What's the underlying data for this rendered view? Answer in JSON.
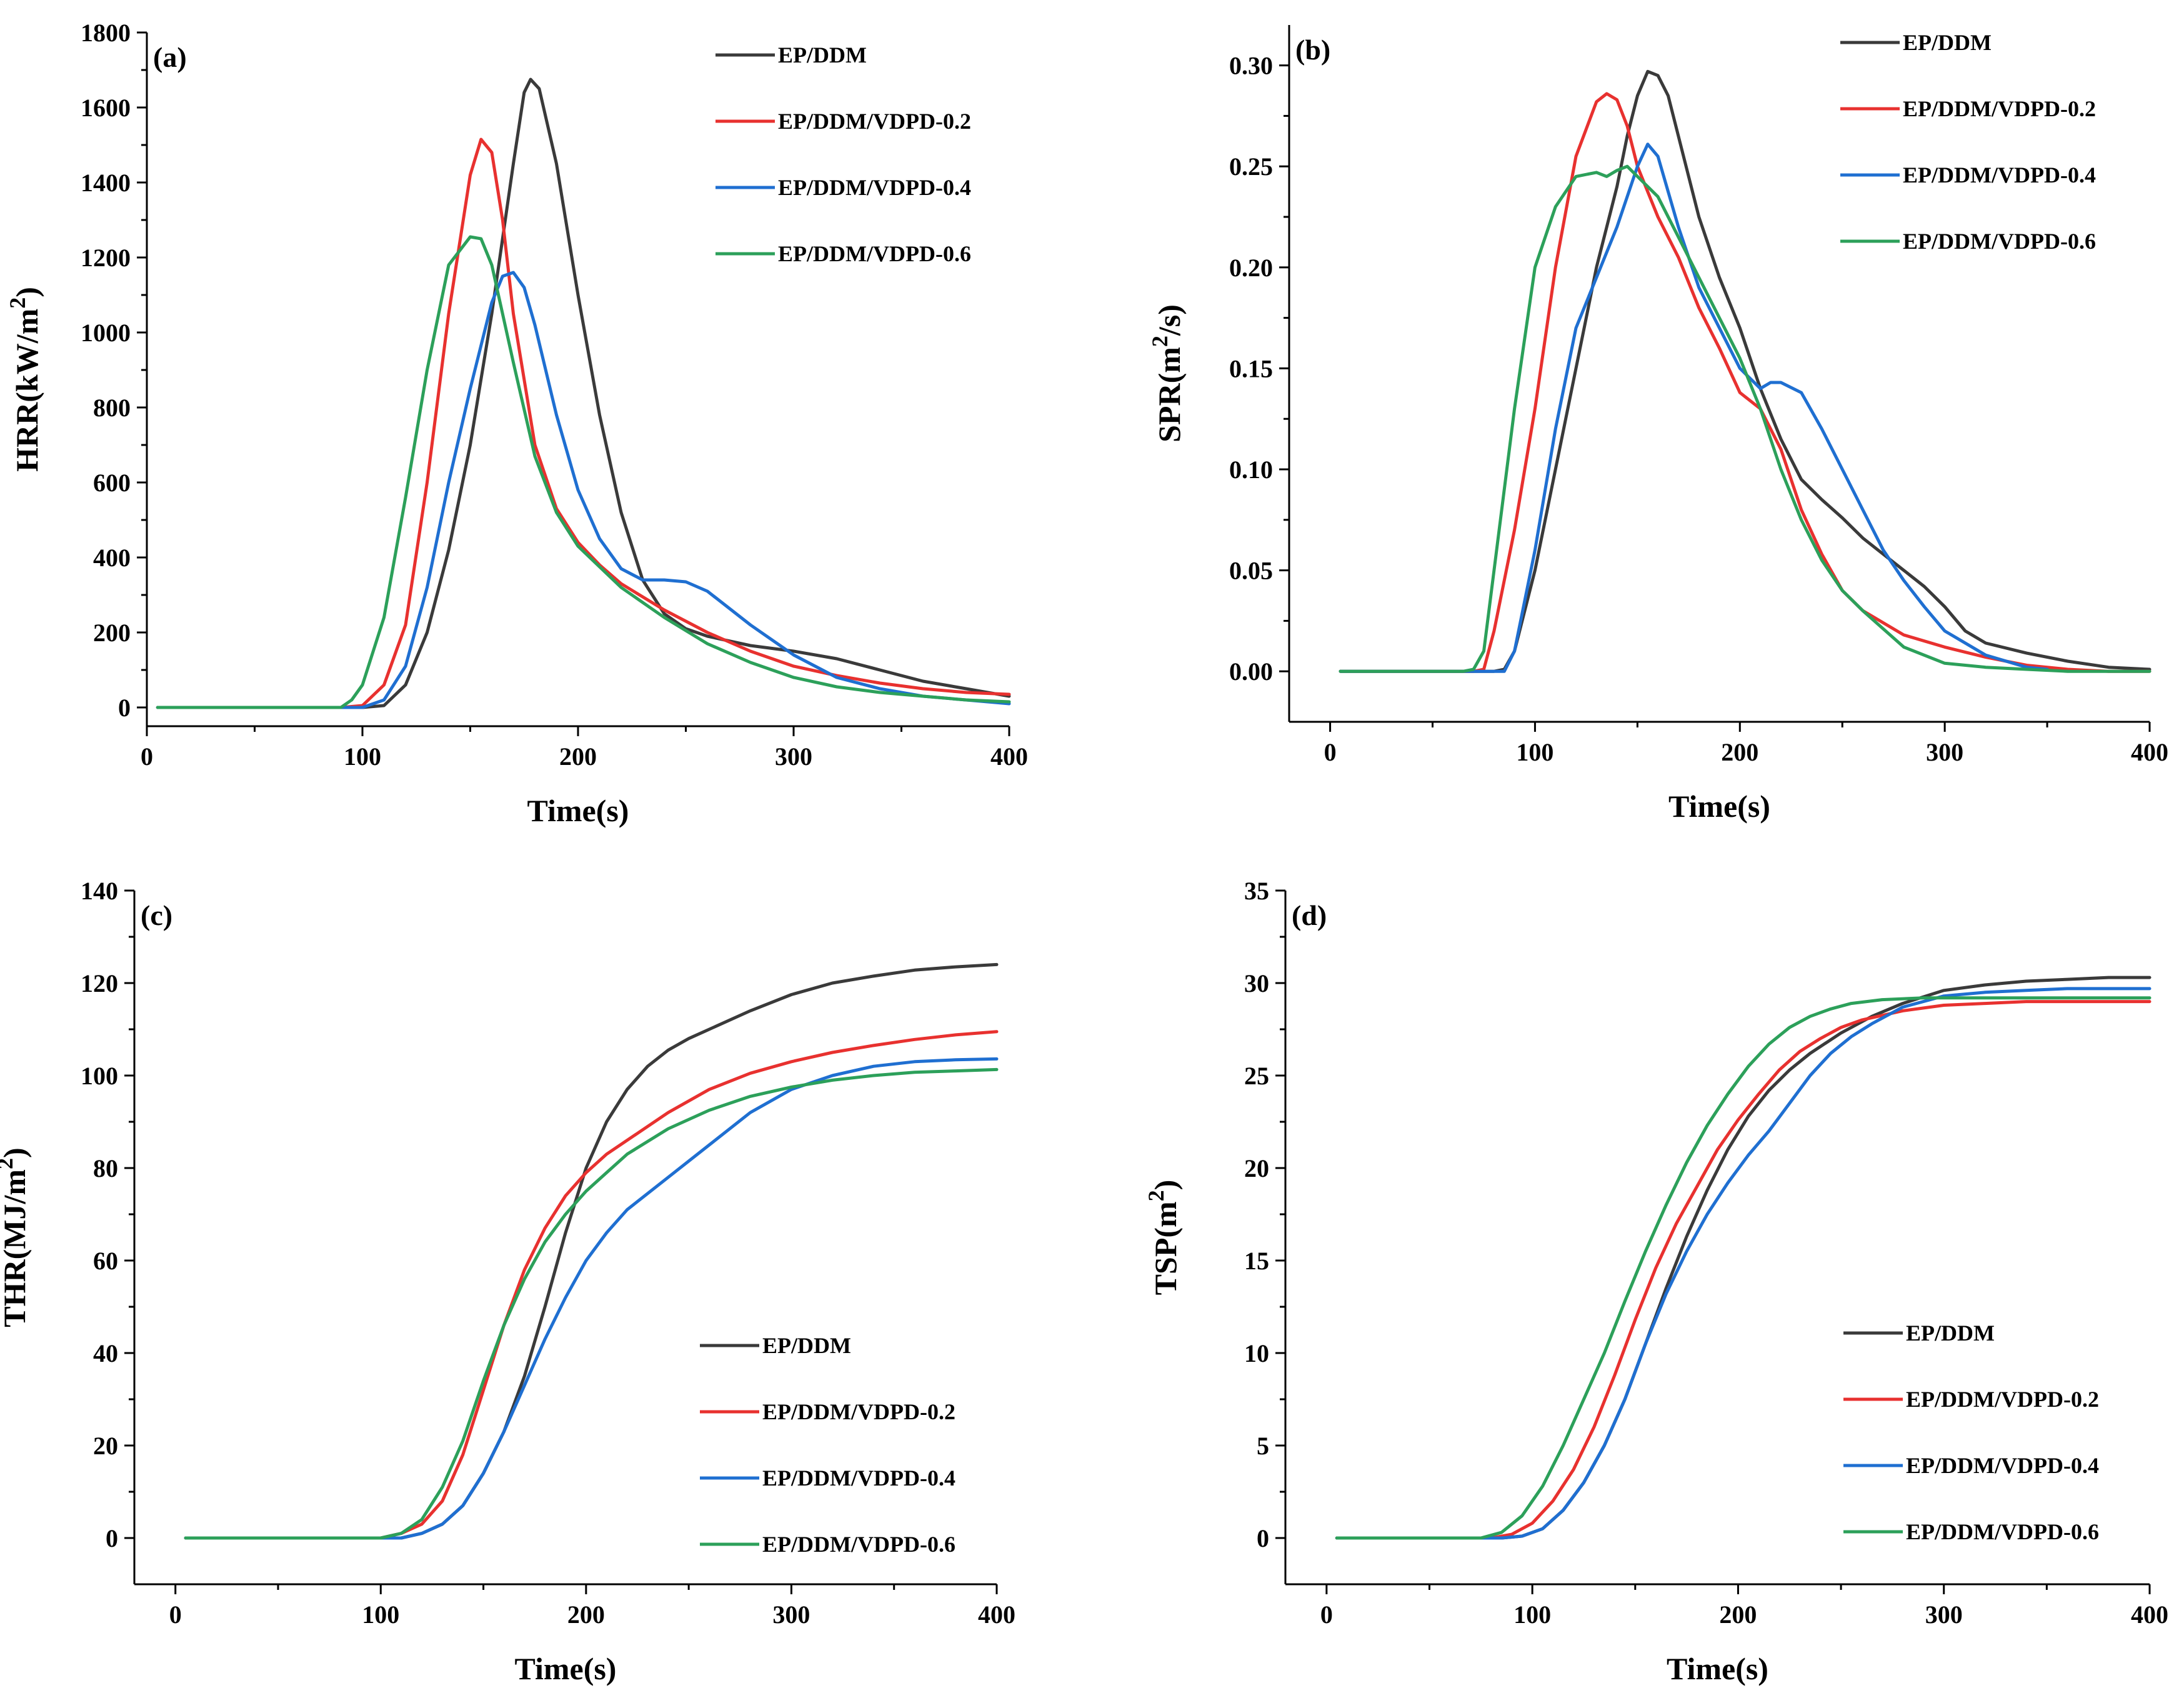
{
  "colors": {
    "EP/DDM": "#3a3a3a",
    "EP/DDM/VDPD-0.2": "#e8312f",
    "EP/DDM/VDPD-0.4": "#1f6fd1",
    "EP/DDM/VDPD-0.6": "#2ca05a"
  },
  "chart_data": [
    {
      "id": "a",
      "type": "line",
      "panel_label": "(a)",
      "title": "",
      "xlabel": "Time(s)",
      "ylabel": "HRR(kW/m²)",
      "xlim": [
        0,
        400
      ],
      "ylim": [
        -50,
        1800
      ],
      "xticks": [
        0,
        100,
        200,
        300,
        400
      ],
      "xtick_labels": [
        "0",
        "100",
        "200",
        "300",
        "400"
      ],
      "yticks": [
        0,
        200,
        400,
        600,
        800,
        1000,
        1200,
        1400,
        1600,
        1800
      ],
      "ytick_labels": [
        "0",
        "200",
        "400",
        "600",
        "800",
        "1000",
        "1200",
        "1400",
        "1600",
        "1800"
      ],
      "legend_position": "top-right",
      "series": [
        {
          "name": "EP/DDM",
          "x": [
            5,
            100,
            110,
            120,
            130,
            140,
            150,
            160,
            170,
            175,
            178,
            182,
            190,
            200,
            210,
            220,
            230,
            240,
            250,
            260,
            280,
            300,
            320,
            340,
            360,
            380,
            400
          ],
          "y": [
            0,
            0,
            5,
            60,
            200,
            420,
            700,
            1050,
            1450,
            1640,
            1675,
            1650,
            1450,
            1100,
            780,
            520,
            340,
            250,
            210,
            190,
            165,
            150,
            130,
            100,
            70,
            50,
            30
          ]
        },
        {
          "name": "EP/DDM/VDPD-0.2",
          "x": [
            5,
            90,
            100,
            110,
            120,
            130,
            140,
            150,
            155,
            160,
            165,
            170,
            180,
            190,
            200,
            210,
            220,
            240,
            260,
            280,
            300,
            320,
            340,
            360,
            380,
            400
          ],
          "y": [
            0,
            0,
            5,
            60,
            220,
            600,
            1050,
            1420,
            1515,
            1480,
            1300,
            1050,
            700,
            530,
            440,
            380,
            330,
            260,
            200,
            150,
            110,
            85,
            65,
            50,
            40,
            35
          ]
        },
        {
          "name": "EP/DDM/VDPD-0.4",
          "x": [
            5,
            100,
            110,
            120,
            130,
            140,
            150,
            160,
            165,
            170,
            175,
            180,
            190,
            200,
            210,
            220,
            230,
            240,
            250,
            260,
            280,
            300,
            320,
            340,
            360,
            380,
            400
          ],
          "y": [
            0,
            0,
            20,
            110,
            320,
            600,
            850,
            1080,
            1150,
            1160,
            1120,
            1020,
            780,
            580,
            450,
            370,
            340,
            340,
            335,
            310,
            220,
            140,
            80,
            50,
            30,
            20,
            10
          ]
        },
        {
          "name": "EP/DDM/VDPD-0.6",
          "x": [
            5,
            90,
            95,
            100,
            110,
            120,
            130,
            140,
            150,
            155,
            160,
            170,
            180,
            190,
            200,
            220,
            240,
            260,
            280,
            300,
            320,
            340,
            360,
            380,
            400
          ],
          "y": [
            0,
            0,
            20,
            60,
            240,
            560,
            900,
            1180,
            1255,
            1250,
            1180,
            920,
            670,
            520,
            430,
            320,
            240,
            170,
            120,
            80,
            55,
            40,
            30,
            20,
            15
          ]
        }
      ]
    },
    {
      "id": "b",
      "type": "line",
      "panel_label": "(b)",
      "title": "",
      "xlabel": "Time(s)",
      "ylabel": "SPR(m²/s)",
      "xlim": [
        -20,
        400
      ],
      "ylim": [
        -0.025,
        0.32
      ],
      "xticks": [
        0,
        100,
        200,
        300,
        400
      ],
      "xtick_labels": [
        "0",
        "100",
        "200",
        "300",
        "400"
      ],
      "yticks": [
        0,
        0.05,
        0.1,
        0.15,
        0.2,
        0.25,
        0.3
      ],
      "ytick_labels": [
        "0.00",
        "0.05",
        "0.10",
        "0.15",
        "0.20",
        "0.25",
        "0.30"
      ],
      "legend_position": "top-right",
      "series": [
        {
          "name": "EP/DDM",
          "x": [
            5,
            80,
            85,
            90,
            100,
            110,
            120,
            130,
            140,
            145,
            150,
            155,
            160,
            165,
            170,
            180,
            190,
            200,
            210,
            220,
            230,
            240,
            250,
            260,
            270,
            280,
            290,
            300,
            310,
            320,
            340,
            360,
            380,
            400
          ],
          "y": [
            0,
            0,
            0.001,
            0.01,
            0.05,
            0.1,
            0.15,
            0.2,
            0.24,
            0.265,
            0.285,
            0.297,
            0.295,
            0.285,
            0.265,
            0.225,
            0.195,
            0.17,
            0.14,
            0.115,
            0.095,
            0.085,
            0.076,
            0.066,
            0.058,
            0.05,
            0.042,
            0.032,
            0.02,
            0.014,
            0.009,
            0.005,
            0.002,
            0.001
          ]
        },
        {
          "name": "EP/DDM/VDPD-0.2",
          "x": [
            5,
            70,
            75,
            80,
            90,
            100,
            110,
            120,
            130,
            135,
            140,
            145,
            150,
            160,
            170,
            180,
            190,
            200,
            210,
            220,
            230,
            240,
            250,
            260,
            280,
            300,
            320,
            340,
            360,
            380,
            400
          ],
          "y": [
            0,
            0,
            0.001,
            0.02,
            0.07,
            0.13,
            0.2,
            0.255,
            0.282,
            0.286,
            0.283,
            0.27,
            0.25,
            0.225,
            0.205,
            0.18,
            0.16,
            0.138,
            0.13,
            0.11,
            0.08,
            0.058,
            0.04,
            0.03,
            0.018,
            0.012,
            0.007,
            0.003,
            0.001,
            0,
            0
          ]
        },
        {
          "name": "EP/DDM/VDPD-0.4",
          "x": [
            5,
            85,
            90,
            100,
            110,
            120,
            130,
            140,
            150,
            155,
            160,
            170,
            180,
            190,
            200,
            210,
            215,
            220,
            230,
            240,
            250,
            260,
            270,
            280,
            290,
            300,
            320,
            340,
            350
          ],
          "y": [
            0,
            0,
            0.01,
            0.06,
            0.12,
            0.17,
            0.195,
            0.22,
            0.25,
            0.261,
            0.255,
            0.22,
            0.19,
            0.17,
            0.15,
            0.14,
            0.143,
            0.143,
            0.138,
            0.12,
            0.1,
            0.08,
            0.06,
            0.045,
            0.032,
            0.02,
            0.008,
            0.002,
            0.001
          ]
        },
        {
          "name": "EP/DDM/VDPD-0.6",
          "x": [
            5,
            65,
            70,
            75,
            80,
            90,
            100,
            110,
            120,
            130,
            135,
            140,
            145,
            150,
            160,
            170,
            180,
            190,
            200,
            210,
            220,
            230,
            240,
            250,
            260,
            280,
            300,
            320,
            340,
            360,
            380,
            400
          ],
          "y": [
            0,
            0,
            0.001,
            0.01,
            0.05,
            0.13,
            0.2,
            0.23,
            0.245,
            0.247,
            0.245,
            0.248,
            0.25,
            0.245,
            0.235,
            0.215,
            0.195,
            0.175,
            0.155,
            0.13,
            0.1,
            0.075,
            0.055,
            0.04,
            0.03,
            0.012,
            0.004,
            0.002,
            0.001,
            0,
            0,
            0
          ]
        }
      ]
    },
    {
      "id": "c",
      "type": "line",
      "panel_label": "(c)",
      "title": "",
      "xlabel": "Time(s)",
      "ylabel": "THR(MJ/m²)",
      "xlim": [
        -20,
        400
      ],
      "ylim": [
        -10,
        140
      ],
      "xticks": [
        0,
        100,
        200,
        300,
        400
      ],
      "xtick_labels": [
        "0",
        "100",
        "200",
        "300",
        "400"
      ],
      "yticks": [
        0,
        20,
        40,
        60,
        80,
        100,
        120,
        140
      ],
      "ytick_labels": [
        "0",
        "20",
        "40",
        "60",
        "80",
        "100",
        "120",
        "140"
      ],
      "legend_position": "bottom-right",
      "series": [
        {
          "name": "EP/DDM",
          "x": [
            5,
            110,
            120,
            130,
            140,
            150,
            160,
            170,
            180,
            190,
            200,
            210,
            220,
            230,
            240,
            250,
            260,
            280,
            300,
            320,
            340,
            360,
            380,
            400
          ],
          "y": [
            0,
            0,
            1,
            3,
            7,
            14,
            23,
            35,
            50,
            66,
            80,
            90,
            97,
            102,
            105.5,
            108,
            110,
            114,
            117.5,
            120,
            121.5,
            122.8,
            123.5,
            124
          ]
        },
        {
          "name": "EP/DDM/VDPD-0.2",
          "x": [
            5,
            100,
            110,
            120,
            130,
            140,
            150,
            160,
            170,
            180,
            190,
            200,
            210,
            220,
            240,
            260,
            280,
            300,
            320,
            340,
            360,
            380,
            400
          ],
          "y": [
            0,
            0,
            1,
            3,
            8,
            18,
            32,
            46,
            58,
            67,
            74,
            79,
            83,
            86,
            92,
            97,
            100.5,
            103,
            105,
            106.5,
            107.8,
            108.8,
            109.5
          ]
        },
        {
          "name": "EP/DDM/VDPD-0.4",
          "x": [
            5,
            110,
            120,
            130,
            140,
            150,
            160,
            170,
            180,
            190,
            200,
            210,
            220,
            240,
            260,
            280,
            300,
            320,
            340,
            360,
            380,
            400
          ],
          "y": [
            0,
            0,
            1,
            3,
            7,
            14,
            23,
            33,
            43,
            52,
            60,
            66,
            71,
            78,
            85,
            92,
            97,
            100,
            102,
            103,
            103.4,
            103.6
          ]
        },
        {
          "name": "EP/DDM/VDPD-0.6",
          "x": [
            5,
            100,
            110,
            120,
            130,
            140,
            150,
            160,
            170,
            180,
            190,
            200,
            210,
            220,
            240,
            260,
            280,
            300,
            320,
            340,
            360,
            380,
            400
          ],
          "y": [
            0,
            0,
            1,
            4,
            11,
            21,
            34,
            46,
            56,
            64,
            70,
            75,
            79,
            83,
            88.5,
            92.5,
            95.5,
            97.5,
            99,
            100,
            100.7,
            101,
            101.3
          ]
        }
      ]
    },
    {
      "id": "d",
      "type": "line",
      "panel_label": "(d)",
      "title": "",
      "xlabel": "Time(s)",
      "ylabel": "TSP(m²)",
      "xlim": [
        -20,
        400
      ],
      "ylim": [
        -2.5,
        35
      ],
      "xticks": [
        0,
        100,
        200,
        300,
        400
      ],
      "xtick_labels": [
        "0",
        "100",
        "200",
        "300",
        "400"
      ],
      "yticks": [
        0,
        5,
        10,
        15,
        20,
        25,
        30,
        35
      ],
      "ytick_labels": [
        "0",
        "5",
        "10",
        "15",
        "20",
        "25",
        "30",
        "35"
      ],
      "legend_position": "bottom-right",
      "series": [
        {
          "name": "EP/DDM",
          "x": [
            5,
            85,
            95,
            105,
            115,
            125,
            135,
            145,
            155,
            165,
            175,
            185,
            195,
            205,
            215,
            225,
            235,
            250,
            265,
            280,
            300,
            320,
            340,
            360,
            380,
            400
          ],
          "y": [
            0,
            0,
            0.1,
            0.5,
            1.5,
            3,
            5,
            7.5,
            10.5,
            13.5,
            16.3,
            18.8,
            21,
            22.8,
            24.2,
            25.3,
            26.2,
            27.3,
            28.2,
            28.9,
            29.6,
            29.9,
            30.1,
            30.2,
            30.3,
            30.3
          ]
        },
        {
          "name": "EP/DDM/VDPD-0.2",
          "x": [
            5,
            80,
            90,
            100,
            110,
            120,
            130,
            140,
            150,
            160,
            170,
            180,
            190,
            200,
            210,
            220,
            230,
            240,
            250,
            260,
            280,
            300,
            320,
            340,
            360,
            380,
            400
          ],
          "y": [
            0,
            0,
            0.2,
            0.8,
            2,
            3.7,
            6,
            8.8,
            11.8,
            14.6,
            17,
            19,
            21,
            22.6,
            24,
            25.3,
            26.3,
            27,
            27.6,
            28,
            28.5,
            28.8,
            28.9,
            29,
            29,
            29,
            29
          ]
        },
        {
          "name": "EP/DDM/VDPD-0.4",
          "x": [
            5,
            85,
            95,
            105,
            115,
            125,
            135,
            145,
            155,
            165,
            175,
            185,
            195,
            205,
            215,
            225,
            235,
            245,
            255,
            265,
            280,
            300,
            320,
            340,
            360,
            380,
            400
          ],
          "y": [
            0,
            0,
            0.1,
            0.5,
            1.5,
            3,
            5,
            7.5,
            10.5,
            13.2,
            15.5,
            17.5,
            19.2,
            20.7,
            22,
            23.5,
            25,
            26.2,
            27.1,
            27.8,
            28.7,
            29.3,
            29.5,
            29.6,
            29.7,
            29.7,
            29.7
          ]
        },
        {
          "name": "EP/DDM/VDPD-0.6",
          "x": [
            5,
            75,
            85,
            95,
            105,
            115,
            125,
            135,
            145,
            155,
            165,
            175,
            185,
            195,
            205,
            215,
            225,
            235,
            245,
            255,
            270,
            290,
            310,
            330,
            350,
            370,
            400
          ],
          "y": [
            0,
            0,
            0.3,
            1.2,
            2.8,
            5,
            7.5,
            10,
            12.8,
            15.5,
            18,
            20.3,
            22.3,
            24,
            25.5,
            26.7,
            27.6,
            28.2,
            28.6,
            28.9,
            29.1,
            29.2,
            29.2,
            29.2,
            29.2,
            29.2,
            29.2
          ]
        }
      ]
    }
  ]
}
